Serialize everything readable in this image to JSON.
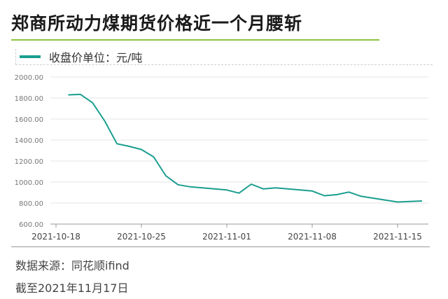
{
  "title": "郑商所动力煤期货价格近一个月腰斩",
  "legend_label": "收盘价单位：元/吨",
  "footer": {
    "source": "数据来源：同花顺ifind",
    "date": "截至2021年11月17日"
  },
  "colors": {
    "series": "#1a9e8f",
    "accent_rule": "#8dc63f"
  },
  "chart_data": {
    "type": "line",
    "title": "郑商所动力煤期货价格近一个月腰斩",
    "xlabel": "",
    "ylabel": "收盘价单位：元/吨",
    "ylim": [
      600,
      2000
    ],
    "yticks": [
      "600.00",
      "800.00",
      "1000.00",
      "1200.00",
      "1400.00",
      "1600.00",
      "1800.00",
      "2000.00"
    ],
    "xlim": [
      "2021-10-18",
      "2021-11-17"
    ],
    "xticks": [
      "2021-10-18",
      "2021-10-25",
      "2021-11-01",
      "2021-11-08",
      "2021-11-15"
    ],
    "grid": true,
    "legend": "top-left",
    "series": [
      {
        "name": "收盘价",
        "x": [
          "2021-10-19",
          "2021-10-20",
          "2021-10-21",
          "2021-10-22",
          "2021-10-23",
          "2021-10-24",
          "2021-10-25",
          "2021-10-26",
          "2021-10-27",
          "2021-10-28",
          "2021-10-29",
          "2021-11-01",
          "2021-11-02",
          "2021-11-03",
          "2021-11-04",
          "2021-11-05",
          "2021-11-08",
          "2021-11-09",
          "2021-11-10",
          "2021-11-11",
          "2021-11-12",
          "2021-11-15",
          "2021-11-17"
        ],
        "values": [
          1830,
          1835,
          1755,
          1580,
          1365,
          1340,
          1310,
          1240,
          1060,
          975,
          955,
          925,
          895,
          980,
          935,
          945,
          915,
          870,
          880,
          905,
          865,
          810,
          820
        ]
      }
    ]
  }
}
